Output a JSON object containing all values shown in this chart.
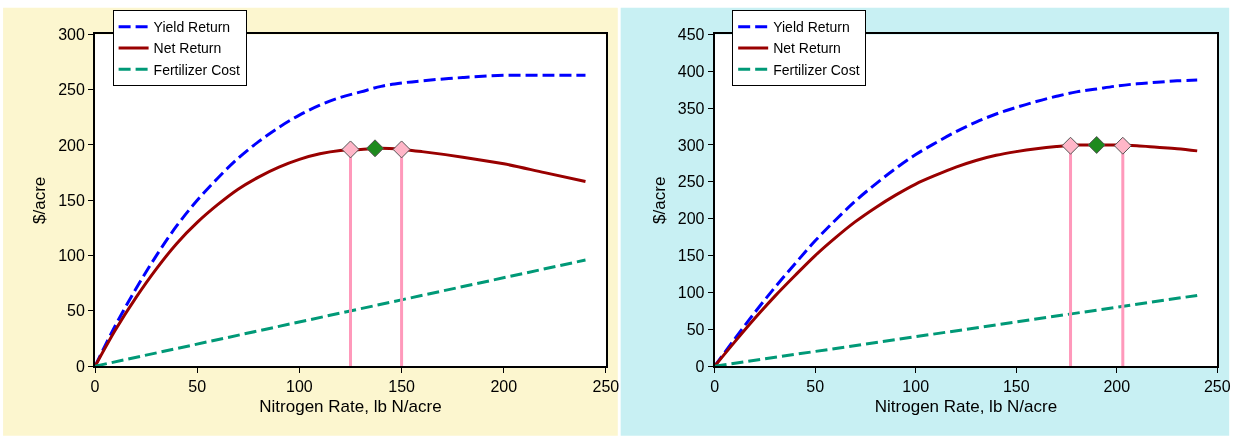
{
  "chart_data": [
    {
      "type": "line",
      "xlabel": "Nitrogen Rate, lb N/acre",
      "ylabel": "$/acre",
      "xlim": [
        0,
        250
      ],
      "xticks": [
        0,
        50,
        100,
        150,
        200,
        250
      ],
      "ylim": [
        0,
        300
      ],
      "yticks": [
        0,
        50,
        100,
        150,
        200,
        250,
        300
      ],
      "grid": false,
      "legend": "top left",
      "series": [
        {
          "name": "Yield Return",
          "color": "#0000ff",
          "line_style": "dashed",
          "x": [
            0,
            10,
            20,
            30,
            40,
            50,
            60,
            70,
            80,
            90,
            100,
            110,
            120,
            130,
            140,
            150,
            160,
            180,
            200,
            220,
            240
          ],
          "values": [
            0,
            37,
            70,
            100,
            127,
            150,
            170,
            188,
            203,
            216,
            227,
            236,
            243,
            248,
            253,
            256,
            258,
            261,
            263,
            263,
            263
          ]
        },
        {
          "name": "Net Return",
          "color": "#990000",
          "line_style": "solid",
          "x": [
            0,
            10,
            20,
            30,
            40,
            50,
            60,
            70,
            80,
            90,
            100,
            110,
            120,
            130,
            140,
            150,
            160,
            180,
            200,
            220,
            240
          ],
          "values": [
            0,
            33,
            62,
            88,
            111,
            130,
            146,
            160,
            171,
            180,
            187,
            192,
            195,
            196,
            197,
            196,
            194,
            189,
            183,
            175,
            167
          ]
        },
        {
          "name": "Fertilizer Cost",
          "color": "#009977",
          "line_style": "dashed",
          "x": [
            0,
            240
          ],
          "values": [
            0,
            96
          ]
        },
        {
          "type": "line",
          "color": "#ff99bb",
          "line_style": "solid",
          "x": [
            125,
            125
          ],
          "values": [
            0,
            196
          ]
        },
        {
          "type": "line",
          "color": "#ff99bb",
          "line_style": "solid",
          "x": [
            150,
            150
          ],
          "values": [
            0,
            196
          ]
        },
        {
          "type": "scatter",
          "color": "#ffb6c8",
          "marker": "diamond",
          "x": [
            125,
            150
          ],
          "values": [
            196,
            196
          ]
        },
        {
          "type": "scatter",
          "color": "#1e8a1e",
          "marker": "diamond",
          "x": [
            137
          ],
          "values": [
            197
          ]
        }
      ]
    },
    {
      "type": "line",
      "xlabel": "Nitrogen Rate, lb N/acre",
      "ylabel": "$/acre",
      "xlim": [
        0,
        250
      ],
      "xticks": [
        0,
        50,
        100,
        150,
        200,
        250
      ],
      "ylim": [
        0,
        450
      ],
      "yticks": [
        0,
        50,
        100,
        150,
        200,
        250,
        300,
        350,
        400,
        450
      ],
      "grid": false,
      "legend": "top left",
      "series": [
        {
          "name": "Yield Return",
          "color": "#0000ff",
          "line_style": "dashed",
          "x": [
            0,
            10,
            20,
            30,
            40,
            50,
            60,
            70,
            80,
            90,
            100,
            110,
            120,
            130,
            140,
            150,
            160,
            170,
            180,
            190,
            200,
            210,
            220,
            230,
            240
          ],
          "values": [
            0,
            37,
            73,
            107,
            139,
            170,
            198,
            224,
            247,
            268,
            287,
            303,
            318,
            331,
            342,
            351,
            359,
            366,
            372,
            376,
            380,
            383,
            385,
            387,
            388
          ]
        },
        {
          "name": "Net Return",
          "color": "#990000",
          "line_style": "solid",
          "x": [
            0,
            10,
            20,
            30,
            40,
            50,
            60,
            70,
            80,
            90,
            100,
            110,
            120,
            130,
            140,
            150,
            160,
            170,
            180,
            190,
            200,
            210,
            220,
            230,
            240
          ],
          "values": [
            0,
            33,
            65,
            95,
            123,
            150,
            174,
            196,
            215,
            232,
            247,
            259,
            270,
            279,
            286,
            291,
            295,
            298,
            300,
            300,
            300,
            299,
            297,
            295,
            292
          ]
        },
        {
          "name": "Fertilizer Cost",
          "color": "#009977",
          "line_style": "dashed",
          "x": [
            0,
            240
          ],
          "values": [
            0,
            96
          ]
        },
        {
          "type": "line",
          "color": "#ff99bb",
          "line_style": "solid",
          "x": [
            177,
            177
          ],
          "values": [
            0,
            299
          ]
        },
        {
          "type": "line",
          "color": "#ff99bb",
          "line_style": "solid",
          "x": [
            203,
            203
          ],
          "values": [
            0,
            299
          ]
        },
        {
          "type": "scatter",
          "color": "#ffb6c8",
          "marker": "diamond",
          "x": [
            177,
            203
          ],
          "values": [
            299,
            299
          ]
        },
        {
          "type": "scatter",
          "color": "#1e8a1e",
          "marker": "diamond",
          "x": [
            190
          ],
          "values": [
            300
          ]
        }
      ]
    }
  ]
}
